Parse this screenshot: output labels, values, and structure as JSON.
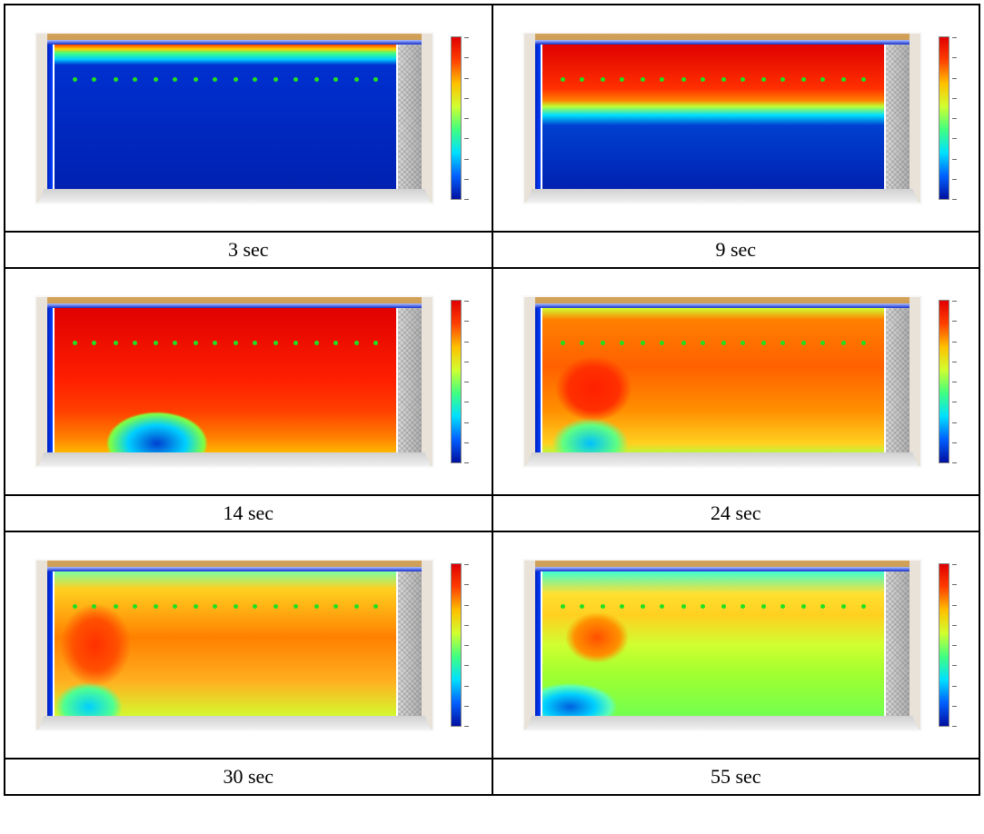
{
  "figure": {
    "panels": [
      {
        "time_label": "3 sec",
        "base_state": "cold",
        "top_intrusion": 0.12,
        "mix": 0.0
      },
      {
        "time_label": "9 sec",
        "base_state": "cold",
        "top_intrusion": 0.42,
        "mix": 0.1
      },
      {
        "time_label": "14 sec",
        "base_state": "hot",
        "top_intrusion": 0.0,
        "mix": 0.15
      },
      {
        "time_label": "24 sec",
        "base_state": "warm",
        "top_intrusion": 0.0,
        "mix": 0.3
      },
      {
        "time_label": "30 sec",
        "base_state": "warm",
        "top_intrusion": 0.0,
        "mix": 0.35
      },
      {
        "time_label": "55 sec",
        "base_state": "medium",
        "top_intrusion": 0.0,
        "mix": 0.4
      }
    ],
    "colorbar": {
      "gradient": [
        "#0010a0",
        "#0060ff",
        "#00e0ff",
        "#40ff80",
        "#d0ff30",
        "#ffc000",
        "#ff4000",
        "#e00000"
      ],
      "ticks": 9
    },
    "heatmap_backgrounds": {
      "cold_12": "linear-gradient(180deg, #ff4000 0%, #ffd000 3%, #40ff80 6%, #00d0ff 10%, #0030d0 14%, #0020b0 100%)",
      "cold_42": "linear-gradient(180deg, #e00000 0%, #ff3000 30%, #ff8000 38%, #c0ff30 42%, #00e0ff 48%, #0040d0 55%, #0020b0 100%)",
      "hot": "radial-gradient(ellipse 80px 50px at 30% 92%, #0040d0 0%, #00d0ff 40%, #80ff40 65%, transparent 70%), linear-gradient(180deg, #e00000 0%, #ff2000 50%, #ff4000 70%, #ff8000 88%, #ffc000 100%)",
      "warm_24": "radial-gradient(ellipse 70px 60px at 15% 55%, #ff2000 0%, #ff3000 40%, transparent 60%), radial-gradient(ellipse 60px 40px at 14% 92%, #00c0ff 0%, #60ff80 50%, transparent 70%), linear-gradient(180deg, #d0ff30 0%, #ff8000 8%, #ff6000 40%, #ff9000 70%, #ffd020 92%, #b0ff40 100%)",
      "warm_30": "radial-gradient(ellipse 60px 70px at 12% 50%, #ff3000 0%, #ff5000 40%, transparent 65%), radial-gradient(ellipse 55px 40px at 10% 92%, #00d0ff 0%, #50ff90 50%, transparent 68%), linear-gradient(180deg, #80ffa0 0%, #ffd020 12%, #ff8000 45%, #ffb020 75%, #d0ff30 100%)",
      "medium": "radial-gradient(ellipse 50px 40px at 16% 45%, #ff5000 0%, #ff9000 50%, transparent 70%), radial-gradient(ellipse 70px 35px at 8% 92%, #0060e0 0%, #00d0ff 40%, #60ffb0 65%, transparent 75%), linear-gradient(180deg, #40ffd0 0%, #ffe030 15%, #ffd020 30%, #d0ff30 50%, #a0ff30 70%, #70ff50 100%)"
    },
    "markers_per_row": 16,
    "room_colors": {
      "wall_wood": "#d4a35c",
      "wall_light": "#e8e2d8",
      "floor": "#d0d0d0",
      "door_mesh": "#a0a0a0",
      "blue_strip": "#0030e0"
    }
  }
}
